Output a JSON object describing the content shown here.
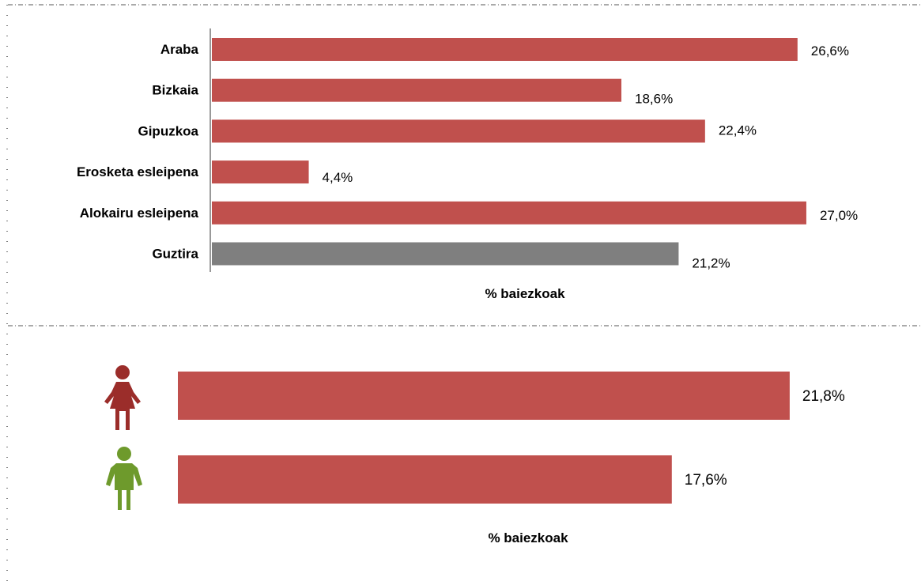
{
  "chart_data": [
    {
      "type": "bar",
      "orientation": "horizontal",
      "categories": [
        "Araba",
        "Bizkaia",
        "Gipuzkoa",
        "Erosketa esleipena",
        "Alokairu esleipena",
        "Guztira"
      ],
      "values": [
        26.6,
        18.6,
        22.4,
        4.4,
        27.0,
        21.2
      ],
      "value_labels": [
        "26,6%",
        "18,6%",
        "22,4%",
        "4,4%",
        "27,0%",
        "21,2%"
      ],
      "bar_colors": [
        "#c0504d",
        "#c0504d",
        "#c0504d",
        "#c0504d",
        "#c0504d",
        "#7f7f7f"
      ],
      "xlabel": "% baiezkoak",
      "xlim": [
        0,
        30
      ],
      "grid": false
    },
    {
      "type": "bar",
      "orientation": "horizontal",
      "categories": [
        "female-icon",
        "male-icon"
      ],
      "category_icon_colors": [
        "#9b2d2a",
        "#6e9a2c"
      ],
      "values": [
        21.8,
        17.6
      ],
      "value_labels": [
        "21,8%",
        "17,6%"
      ],
      "bar_colors": [
        "#c0504d",
        "#c0504d"
      ],
      "xlabel": "% baiezkoak",
      "xlim": [
        0,
        25
      ],
      "grid": false
    }
  ]
}
